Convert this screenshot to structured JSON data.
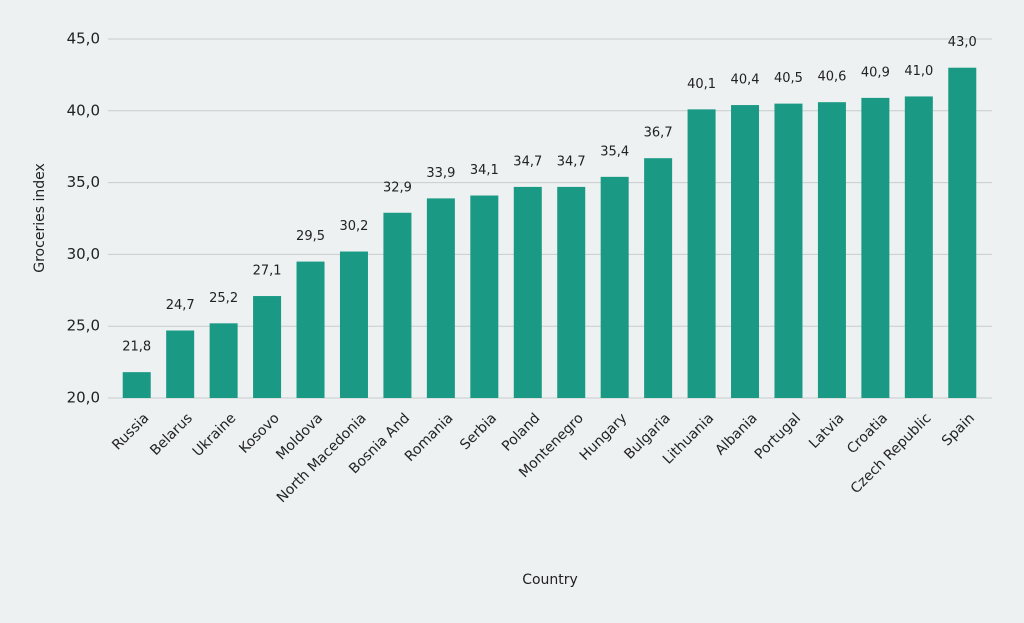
{
  "chart_data": {
    "type": "bar",
    "x_label": "Country",
    "y_label": "Groceries index",
    "categories": [
      "Russia",
      "Belarus",
      "Ukraine",
      "Kosovo",
      "Moldova",
      "North Macedonia",
      "Bosnia And",
      "Romania",
      "Serbia",
      "Poland",
      "Montenegro",
      "Hungary",
      "Bulgaria",
      "Lithuania",
      "Albania",
      "Portugal",
      "Latvia",
      "Croatia",
      "Czech Republic",
      "Spain"
    ],
    "values": [
      21.8,
      24.7,
      25.2,
      27.1,
      29.5,
      30.2,
      32.9,
      33.9,
      34.1,
      34.7,
      34.7,
      35.4,
      36.7,
      40.1,
      40.4,
      40.5,
      40.6,
      40.9,
      41.0,
      43.0
    ],
    "value_labels": [
      "21,8",
      "24,7",
      "25,2",
      "27,1",
      "29,5",
      "30,2",
      "32,9",
      "33,9",
      "34,1",
      "34,7",
      "34,7",
      "35,4",
      "36,7",
      "40,1",
      "40,4",
      "40,5",
      "40,6",
      "40,9",
      "41,0",
      "43,0"
    ],
    "color": "#1a9985",
    "ylim": [
      20,
      45
    ],
    "yticks": [
      {
        "value": 20,
        "label": "20,0"
      },
      {
        "value": 25,
        "label": "25,0"
      },
      {
        "value": 30,
        "label": "30,0"
      },
      {
        "value": 35,
        "label": "35,0"
      },
      {
        "value": 40,
        "label": "40,0"
      },
      {
        "value": 45,
        "label": "45,0"
      }
    ],
    "grid": true
  }
}
